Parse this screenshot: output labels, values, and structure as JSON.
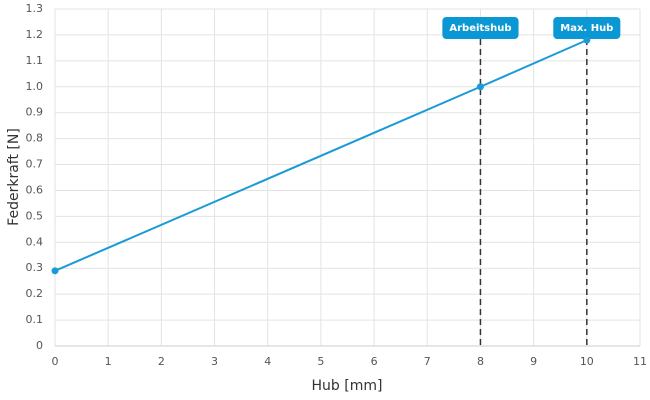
{
  "chart_data": {
    "type": "line",
    "x_label": "Hub [mm]",
    "y_label": "Federkraft [N]",
    "x": [
      0,
      8,
      10
    ],
    "series": [
      {
        "name": "Federkraft",
        "color": "#1a9ad6",
        "values": [
          0.29,
          1.0,
          1.18
        ]
      }
    ],
    "xlim": [
      0,
      11
    ],
    "xticks": [
      0,
      1,
      2,
      3,
      4,
      5,
      6,
      7,
      8,
      9,
      10,
      11
    ],
    "ylim": [
      0,
      1.3
    ],
    "yticks": [
      0,
      0.1,
      0.2,
      0.3,
      0.4,
      0.5,
      0.6,
      0.7,
      0.8,
      0.9,
      {
        "value": 1,
        "label": "1.0"
      },
      1.1,
      1.2,
      1.3
    ],
    "grid": true,
    "annotations": [
      {
        "x": 8,
        "label": "Arbeitshub"
      },
      {
        "x": 10,
        "label": "Max. Hub"
      }
    ]
  }
}
